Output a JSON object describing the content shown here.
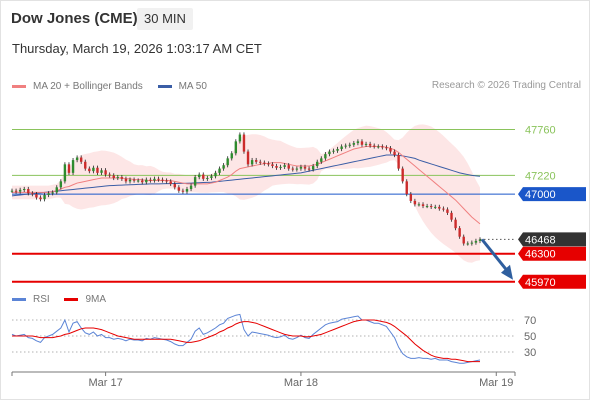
{
  "header": {
    "title": "Dow Jones (CME)",
    "timeframe": "30 MIN",
    "datetime": "Thursday, March 19, 2026 1:03:17 AM CET"
  },
  "legend": {
    "ma20": "MA 20 + Bollinger Bands",
    "ma50": "MA 50",
    "credit": "Research © 2026 Trading Central"
  },
  "rsi_legend": {
    "rsi": "RSI",
    "ma9": "9MA"
  },
  "colors": {
    "ma20": "#f08080",
    "ma50": "#3b5ea6",
    "bands": "#fde2e2",
    "support": "#e60000",
    "pivot": "#1a56c9",
    "resistance": "#8ac35b",
    "candle_up": "#2e8b2e",
    "candle_down": "#cc2b2b",
    "rsi": "#5b84d6",
    "rsi_ma": "#e60000",
    "arrow": "#2f5f9f",
    "last_price": "#333333"
  },
  "chart_data": [
    {
      "type": "candlestick",
      "title": "Dow Jones (CME)",
      "ylim": [
        45850,
        48200
      ],
      "x_ticks": [
        {
          "label": "Mar 17",
          "index": 23
        },
        {
          "label": "Mar 18",
          "index": 71
        },
        {
          "label": "Mar 19",
          "index": 119
        }
      ],
      "levels": [
        {
          "value": 47760,
          "label": "47760",
          "kind": "resistance"
        },
        {
          "value": 47220,
          "label": "47220",
          "kind": "resistance"
        },
        {
          "value": 47000,
          "label": "47000",
          "kind": "pivot"
        },
        {
          "value": 46468,
          "label": "46468",
          "kind": "last"
        },
        {
          "value": 46300,
          "label": "46300",
          "kind": "support"
        },
        {
          "value": 45970,
          "label": "45970",
          "kind": "support"
        }
      ],
      "closes": [
        47040,
        47030,
        47050,
        47060,
        47010,
        47000,
        46960,
        46940,
        46990,
        47010,
        47020,
        47080,
        47150,
        47350,
        47250,
        47400,
        47430,
        47380,
        47300,
        47270,
        47310,
        47250,
        47280,
        47230,
        47220,
        47190,
        47200,
        47180,
        47150,
        47170,
        47160,
        47160,
        47140,
        47170,
        47160,
        47180,
        47170,
        47160,
        47150,
        47120,
        47080,
        47040,
        47030,
        47060,
        47100,
        47200,
        47230,
        47180,
        47190,
        47210,
        47250,
        47300,
        47340,
        47420,
        47480,
        47620,
        47700,
        47500,
        47350,
        47400,
        47380,
        47370,
        47360,
        47350,
        47330,
        47310,
        47320,
        47340,
        47300,
        47290,
        47300,
        47320,
        47300,
        47290,
        47330,
        47380,
        47420,
        47470,
        47500,
        47510,
        47530,
        47560,
        47570,
        47580,
        47600,
        47620,
        47580,
        47590,
        47570,
        47560,
        47560,
        47550,
        47540,
        47500,
        47460,
        47300,
        47150,
        47000,
        46920,
        46880,
        46880,
        46860,
        46860,
        46850,
        46850,
        46830,
        46820,
        46780,
        46700,
        46600,
        46500,
        46420,
        46420,
        46430,
        46450,
        46468
      ],
      "ma20": [
        47020,
        47020,
        47020,
        47020,
        47020,
        47020,
        47020,
        47020,
        47020,
        47020,
        47030,
        47040,
        47060,
        47080,
        47090,
        47110,
        47130,
        47140,
        47150,
        47160,
        47170,
        47180,
        47190,
        47190,
        47190,
        47190,
        47190,
        47190,
        47180,
        47180,
        47170,
        47170,
        47170,
        47160,
        47160,
        47160,
        47160,
        47160,
        47160,
        47160,
        47150,
        47140,
        47130,
        47120,
        47120,
        47120,
        47120,
        47120,
        47120,
        47130,
        47140,
        47160,
        47180,
        47200,
        47230,
        47270,
        47300,
        47310,
        47320,
        47330,
        47340,
        47350,
        47360,
        47360,
        47370,
        47370,
        47370,
        47360,
        47350,
        47340,
        47330,
        47330,
        47330,
        47330,
        47340,
        47350,
        47370,
        47390,
        47410,
        47430,
        47450,
        47470,
        47490,
        47510,
        47530,
        47540,
        47550,
        47560,
        47560,
        47560,
        47560,
        47560,
        47550,
        47540,
        47520,
        47490,
        47450,
        47410,
        47370,
        47330,
        47290,
        47250,
        47210,
        47170,
        47130,
        47090,
        47050,
        47010,
        46970,
        46930,
        46880,
        46830,
        46780,
        46730,
        46690,
        46650
      ],
      "ma50": [
        46980,
        46985,
        46990,
        46995,
        47000,
        47005,
        47010,
        47015,
        47020,
        47025,
        47030,
        47035,
        47040,
        47045,
        47050,
        47055,
        47060,
        47065,
        47070,
        47075,
        47080,
        47085,
        47090,
        47095,
        47100,
        47102,
        47104,
        47106,
        47108,
        47110,
        47112,
        47114,
        47116,
        47118,
        47120,
        47120,
        47121,
        47122,
        47123,
        47124,
        47125,
        47126,
        47127,
        47128,
        47130,
        47132,
        47134,
        47136,
        47138,
        47140,
        47145,
        47150,
        47155,
        47160,
        47165,
        47170,
        47175,
        47180,
        47185,
        47190,
        47195,
        47200,
        47205,
        47210,
        47215,
        47220,
        47225,
        47230,
        47235,
        47240,
        47245,
        47250,
        47260,
        47270,
        47280,
        47290,
        47300,
        47310,
        47320,
        47330,
        47340,
        47350,
        47360,
        47370,
        47380,
        47390,
        47400,
        47410,
        47420,
        47430,
        47440,
        47450,
        47460,
        47460,
        47460,
        47455,
        47450,
        47440,
        47430,
        47420,
        47400,
        47385,
        47370,
        47355,
        47340,
        47325,
        47310,
        47295,
        47280,
        47265,
        47250,
        47240,
        47230,
        47220,
        47215,
        47210
      ]
    },
    {
      "type": "line",
      "title": "RSI",
      "ylim": [
        10,
        80
      ],
      "y_ticks": [
        70,
        50,
        30
      ],
      "series": [
        {
          "name": "RSI",
          "values": [
            52,
            50,
            51,
            52,
            48,
            47,
            44,
            42,
            48,
            50,
            52,
            56,
            60,
            70,
            55,
            66,
            68,
            60,
            54,
            52,
            55,
            50,
            52,
            48,
            48,
            46,
            47,
            46,
            44,
            46,
            45,
            45,
            44,
            47,
            46,
            48,
            47,
            46,
            45,
            43,
            40,
            38,
            38,
            42,
            46,
            56,
            60,
            52,
            54,
            57,
            60,
            64,
            66,
            72,
            74,
            76,
            77,
            58,
            50,
            55,
            54,
            53,
            52,
            51,
            49,
            48,
            49,
            51,
            47,
            46,
            48,
            51,
            48,
            47,
            52,
            56,
            60,
            64,
            66,
            67,
            68,
            71,
            72,
            73,
            74,
            75,
            70,
            70,
            68,
            66,
            66,
            64,
            62,
            55,
            48,
            36,
            28,
            24,
            22,
            22,
            23,
            22,
            22,
            21,
            22,
            20,
            20,
            20,
            18,
            17,
            16,
            16,
            17,
            18,
            19,
            20
          ]
        },
        {
          "name": "9MA",
          "values": [
            50,
            50,
            50,
            50,
            50,
            50,
            49,
            48,
            48,
            48,
            48,
            49,
            50,
            52,
            53,
            55,
            57,
            59,
            60,
            60,
            60,
            59,
            58,
            56,
            54,
            52,
            50,
            49,
            48,
            47,
            46,
            46,
            46,
            46,
            46,
            46,
            46,
            46,
            46,
            46,
            45,
            44,
            43,
            42,
            42,
            43,
            44,
            46,
            48,
            50,
            52,
            55,
            57,
            60,
            62,
            65,
            67,
            68,
            68,
            67,
            66,
            64,
            62,
            60,
            58,
            56,
            54,
            52,
            51,
            50,
            50,
            50,
            49,
            49,
            50,
            51,
            52,
            54,
            56,
            58,
            60,
            62,
            64,
            66,
            68,
            69,
            70,
            70,
            70,
            70,
            69,
            68,
            67,
            65,
            62,
            58,
            54,
            50,
            45,
            40,
            36,
            32,
            29,
            26,
            24,
            23,
            22,
            22,
            21,
            21,
            20,
            19,
            18,
            18,
            18,
            18
          ]
        }
      ]
    }
  ]
}
